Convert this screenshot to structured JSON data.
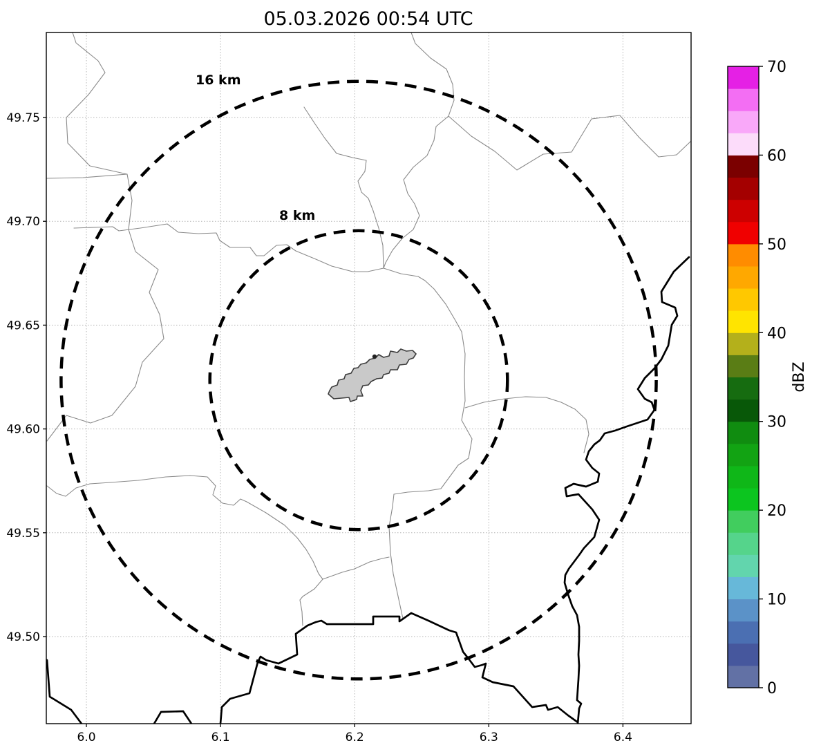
{
  "title": "05.03.2026 00:54 UTC",
  "axes": {
    "x_ticks": [
      {
        "label": "6.0",
        "lon": 6.0
      },
      {
        "label": "6.1",
        "lon": 6.1
      },
      {
        "label": "6.2",
        "lon": 6.2
      },
      {
        "label": "6.3",
        "lon": 6.3
      },
      {
        "label": "6.4",
        "lon": 6.4
      }
    ],
    "y_ticks": [
      {
        "label": "49.75",
        "lat": 49.75
      },
      {
        "label": "49.70",
        "lat": 49.7
      },
      {
        "label": "49.65",
        "lat": 49.65
      },
      {
        "label": "49.60",
        "lat": 49.6
      },
      {
        "label": "49.55",
        "lat": 49.55
      },
      {
        "label": "49.50",
        "lat": 49.5
      }
    ]
  },
  "rings": [
    {
      "label": "16 km",
      "radius_km": 16
    },
    {
      "label": "8 km",
      "radius_km": 8
    }
  ],
  "colorbar": {
    "label": "dBZ",
    "min": 0,
    "max": 70,
    "ticks": [
      0,
      10,
      20,
      30,
      40,
      50,
      60,
      70
    ],
    "colors_low_to_high": [
      "#6271a5",
      "#46579d",
      "#4b6fb2",
      "#5b92c8",
      "#67b8d9",
      "#62d5ad",
      "#55d48b",
      "#41cd5e",
      "#0cc51f",
      "#0fb718",
      "#12a313",
      "#108c10",
      "#085808",
      "#166c10",
      "#5a7d15",
      "#b4b01b",
      "#ffe400",
      "#ffc800",
      "#ffa800",
      "#ff8c00",
      "#f00000",
      "#cd0000",
      "#a40000",
      "#7b0000",
      "#fcdcfa",
      "#f9a8f9",
      "#f36ef3",
      "#e520e5"
    ]
  },
  "chart_data": {
    "type": "map",
    "subtype": "weather-radar-coverage-map",
    "title": "05.03.2026 00:54 UTC",
    "extent": {
      "lon_min": 5.97,
      "lon_max": 6.45,
      "lat_min": 49.46,
      "lat_max": 49.79
    },
    "ring_center": {
      "lon": 6.2,
      "lat": 49.62
    },
    "range_rings_km": [
      16,
      8
    ],
    "radar_echoes": "none visible (map empty of reflectivity shading)",
    "colorbar": {
      "label": "dBZ",
      "min": 0,
      "max": 70,
      "ticks": [
        0,
        10,
        20,
        30,
        40,
        50,
        60,
        70
      ],
      "segment_step_dbz": 2.5
    },
    "xlabel": "",
    "ylabel": "",
    "x_tick_labels": [
      "6.0",
      "6.1",
      "6.2",
      "6.3",
      "6.4"
    ],
    "y_tick_labels": [
      "49.75",
      "49.70",
      "49.65",
      "49.60",
      "49.55",
      "49.50"
    ],
    "grid": "dotted",
    "map_features": [
      "thin gray administrative boundary lines",
      "thick black national border / river lines (south and east)",
      "gray filled urban-area polygon at ring center"
    ]
  }
}
